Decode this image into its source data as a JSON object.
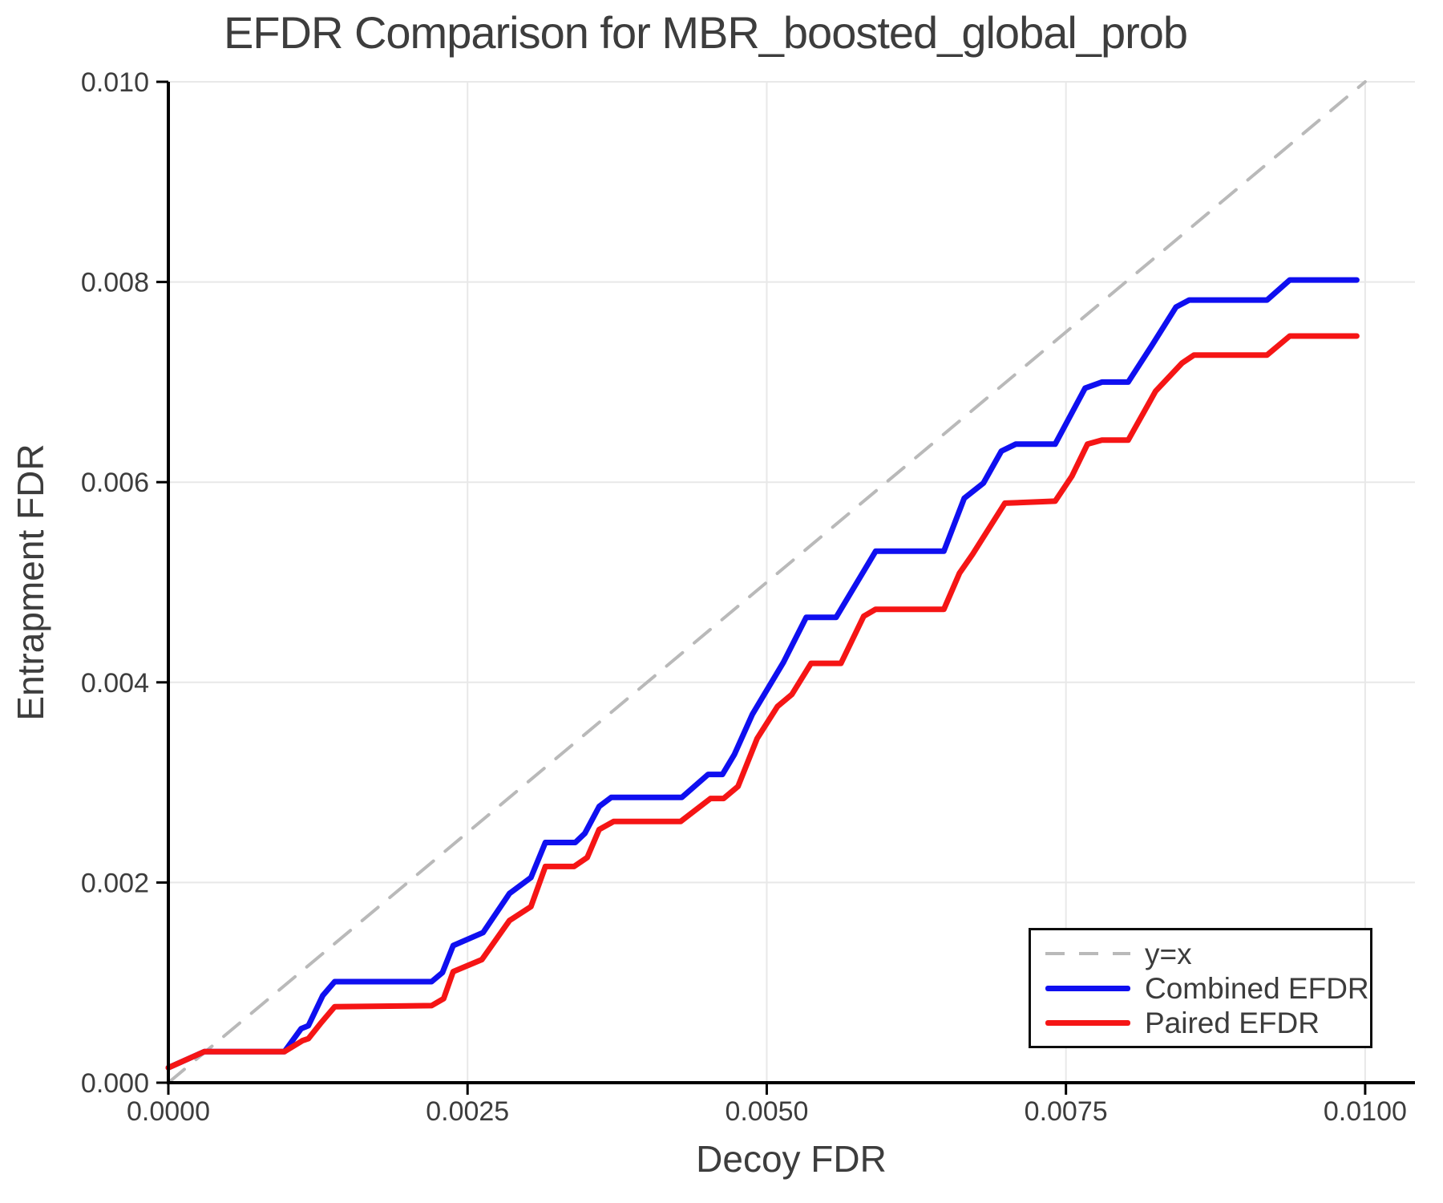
{
  "figure": {
    "background": "#ffffff"
  },
  "chart_data": {
    "type": "line",
    "title": "EFDR Comparison for MBR_boosted_global_prob",
    "xlabel": "Decoy FDR",
    "ylabel": "Entrapment FDR",
    "xlim": [
      0,
      0.010416
    ],
    "ylim": [
      0,
      0.01
    ],
    "grid": true,
    "x_ticks": {
      "values": [
        0,
        0.0025,
        0.005,
        0.0075,
        0.01
      ],
      "labels": [
        "0.0000",
        "0.0025",
        "0.0050",
        "0.0075",
        "0.0100"
      ]
    },
    "y_ticks": {
      "values": [
        0,
        0.002,
        0.004,
        0.006,
        0.008,
        0.01
      ],
      "labels": [
        "0.000",
        "0.002",
        "0.004",
        "0.006",
        "0.008",
        "0.010"
      ]
    },
    "legend": {
      "position": "lower right",
      "entries": [
        "y=x",
        "Combined EFDR",
        "Paired EFDR"
      ]
    },
    "colors": {
      "grid": "#e8e8e8",
      "spine": "#000000",
      "tick_text": "#3d3d3d"
    },
    "series": [
      {
        "name": "y=x",
        "color": "#b9b9b9",
        "style": "dashed",
        "width": 4,
        "points": [
          [
            0,
            0
          ],
          [
            0.01,
            0.01
          ]
        ]
      },
      {
        "name": "Combined EFDR",
        "color": "#0f0ff0",
        "style": "solid",
        "width": 7,
        "points": [
          [
            0.0,
            0.00015
          ],
          [
            0.0003,
            0.00031
          ],
          [
            0.00097,
            0.00031
          ],
          [
            0.00111,
            0.00054
          ],
          [
            0.00117,
            0.00057
          ],
          [
            0.00129,
            0.00087
          ],
          [
            0.00139,
            0.00101
          ],
          [
            0.0022,
            0.00101
          ],
          [
            0.00229,
            0.0011
          ],
          [
            0.00238,
            0.00137
          ],
          [
            0.00263,
            0.0015
          ],
          [
            0.00285,
            0.00189
          ],
          [
            0.00303,
            0.00205
          ],
          [
            0.00315,
            0.0024
          ],
          [
            0.0034,
            0.0024
          ],
          [
            0.00348,
            0.00249
          ],
          [
            0.0036,
            0.00276
          ],
          [
            0.0037,
            0.00285
          ],
          [
            0.00429,
            0.00285
          ],
          [
            0.00451,
            0.00308
          ],
          [
            0.00463,
            0.00308
          ],
          [
            0.00473,
            0.00328
          ],
          [
            0.00488,
            0.00368
          ],
          [
            0.00514,
            0.0042
          ],
          [
            0.00533,
            0.00465
          ],
          [
            0.00558,
            0.00465
          ],
          [
            0.00591,
            0.00531
          ],
          [
            0.00648,
            0.00531
          ],
          [
            0.00665,
            0.00584
          ],
          [
            0.00681,
            0.00599
          ],
          [
            0.00696,
            0.00631
          ],
          [
            0.00708,
            0.00638
          ],
          [
            0.00741,
            0.00638
          ],
          [
            0.00766,
            0.00694
          ],
          [
            0.0078,
            0.007
          ],
          [
            0.00802,
            0.007
          ],
          [
            0.00822,
            0.00737
          ],
          [
            0.00842,
            0.00775
          ],
          [
            0.00853,
            0.00782
          ],
          [
            0.00918,
            0.00782
          ],
          [
            0.00937,
            0.00802
          ],
          [
            0.00993,
            0.00802
          ]
        ]
      },
      {
        "name": "Paired EFDR",
        "color": "#f51515",
        "style": "solid",
        "width": 7,
        "points": [
          [
            0.0,
            0.00015
          ],
          [
            0.0003,
            0.00031
          ],
          [
            0.00097,
            0.00031
          ],
          [
            0.00112,
            0.00042
          ],
          [
            0.00117,
            0.00044
          ],
          [
            0.00127,
            0.00059
          ],
          [
            0.00139,
            0.00076
          ],
          [
            0.0022,
            0.00077
          ],
          [
            0.0023,
            0.00084
          ],
          [
            0.00238,
            0.00111
          ],
          [
            0.00262,
            0.00123
          ],
          [
            0.00285,
            0.00162
          ],
          [
            0.00303,
            0.00176
          ],
          [
            0.00315,
            0.00216
          ],
          [
            0.00339,
            0.00216
          ],
          [
            0.0035,
            0.00225
          ],
          [
            0.0036,
            0.00253
          ],
          [
            0.00372,
            0.00261
          ],
          [
            0.00428,
            0.00261
          ],
          [
            0.00453,
            0.00284
          ],
          [
            0.00464,
            0.00284
          ],
          [
            0.00476,
            0.00296
          ],
          [
            0.00492,
            0.00344
          ],
          [
            0.00509,
            0.00376
          ],
          [
            0.00521,
            0.00388
          ],
          [
            0.00537,
            0.00419
          ],
          [
            0.00562,
            0.00419
          ],
          [
            0.00581,
            0.00466
          ],
          [
            0.00591,
            0.00473
          ],
          [
            0.00648,
            0.00473
          ],
          [
            0.00661,
            0.00509
          ],
          [
            0.00672,
            0.00528
          ],
          [
            0.00699,
            0.00579
          ],
          [
            0.00741,
            0.00581
          ],
          [
            0.00755,
            0.00606
          ],
          [
            0.00768,
            0.00638
          ],
          [
            0.0078,
            0.00642
          ],
          [
            0.00802,
            0.00642
          ],
          [
            0.00825,
            0.00691
          ],
          [
            0.00847,
            0.00719
          ],
          [
            0.00857,
            0.00727
          ],
          [
            0.00918,
            0.00727
          ],
          [
            0.00937,
            0.00746
          ],
          [
            0.00993,
            0.00746
          ]
        ]
      }
    ]
  }
}
